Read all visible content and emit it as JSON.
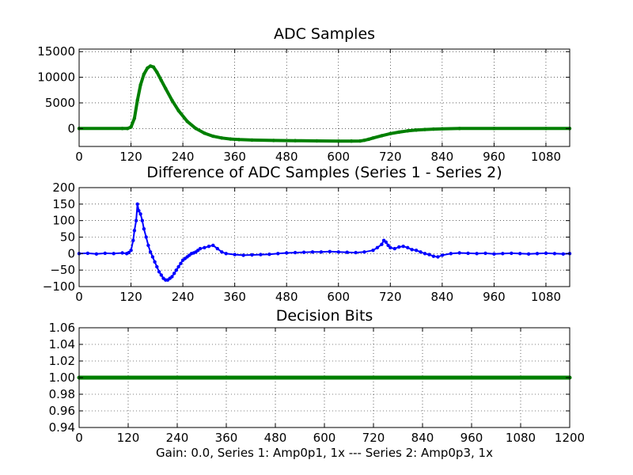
{
  "chart_data": [
    {
      "type": "line",
      "title": "ADC Samples",
      "xlim": [
        0,
        1135
      ],
      "ylim": [
        -3500,
        15500
      ],
      "xticks": [
        0,
        120,
        240,
        360,
        480,
        600,
        720,
        840,
        960,
        1080
      ],
      "yticks": [
        0,
        5000,
        10000,
        15000
      ],
      "grid": true,
      "series": [
        {
          "color": "#007f00",
          "marker": "dot",
          "x": [
            0,
            100,
            112,
            120,
            128,
            135,
            142,
            150,
            158,
            165,
            172,
            180,
            190,
            200,
            215,
            230,
            250,
            270,
            290,
            310,
            330,
            350,
            370,
            400,
            450,
            500,
            550,
            600,
            630,
            650,
            660,
            670,
            680,
            700,
            720,
            740,
            760,
            780,
            800,
            820,
            840,
            880,
            960,
            1080,
            1135
          ],
          "y": [
            0,
            0,
            0,
            300,
            2000,
            5500,
            8500,
            10600,
            11800,
            12200,
            12000,
            11000,
            9400,
            7800,
            5500,
            3500,
            1400,
            0,
            -900,
            -1500,
            -1850,
            -2050,
            -2150,
            -2250,
            -2320,
            -2380,
            -2420,
            -2450,
            -2450,
            -2430,
            -2300,
            -2100,
            -1850,
            -1400,
            -1000,
            -700,
            -450,
            -300,
            -200,
            -120,
            -60,
            0,
            0,
            0,
            0
          ]
        }
      ]
    },
    {
      "type": "line",
      "title": "Difference of ADC Samples (Series 1 - Series 2)",
      "xlim": [
        0,
        1135
      ],
      "ylim": [
        -100,
        200
      ],
      "xticks": [
        0,
        120,
        240,
        360,
        480,
        600,
        720,
        840,
        960,
        1080
      ],
      "yticks": [
        -100,
        -50,
        0,
        50,
        100,
        150,
        200
      ],
      "grid": true,
      "series": [
        {
          "color": "#0000ff",
          "marker": "dot",
          "x": [
            0,
            20,
            40,
            60,
            80,
            100,
            110,
            115,
            120,
            125,
            128,
            132,
            135,
            138,
            142,
            146,
            150,
            155,
            160,
            165,
            170,
            175,
            180,
            185,
            190,
            195,
            200,
            205,
            210,
            215,
            220,
            225,
            230,
            235,
            240,
            245,
            250,
            255,
            260,
            265,
            270,
            275,
            280,
            290,
            300,
            310,
            320,
            330,
            340,
            360,
            380,
            400,
            420,
            440,
            460,
            480,
            500,
            520,
            540,
            560,
            580,
            600,
            620,
            640,
            660,
            680,
            690,
            700,
            705,
            710,
            715,
            720,
            730,
            740,
            750,
            760,
            770,
            780,
            790,
            800,
            810,
            820,
            830,
            840,
            860,
            880,
            900,
            920,
            940,
            960,
            980,
            1000,
            1020,
            1040,
            1060,
            1080,
            1100,
            1120,
            1135
          ],
          "y": [
            0,
            1,
            -1,
            1,
            0,
            2,
            0,
            3,
            10,
            40,
            70,
            100,
            150,
            130,
            120,
            100,
            75,
            50,
            25,
            5,
            -10,
            -25,
            -40,
            -55,
            -65,
            -75,
            -80,
            -80,
            -75,
            -70,
            -60,
            -50,
            -40,
            -30,
            -20,
            -15,
            -10,
            -5,
            0,
            2,
            5,
            10,
            15,
            18,
            22,
            25,
            15,
            5,
            0,
            -3,
            -5,
            -4,
            -3,
            -2,
            0,
            2,
            3,
            4,
            5,
            5,
            6,
            5,
            4,
            3,
            5,
            10,
            18,
            28,
            40,
            35,
            25,
            18,
            15,
            20,
            22,
            18,
            12,
            10,
            5,
            0,
            -3,
            -8,
            -10,
            -5,
            0,
            2,
            1,
            0,
            1,
            -1,
            0,
            1,
            0,
            -1,
            0,
            1,
            0,
            -1,
            0
          ]
        }
      ]
    },
    {
      "type": "line",
      "title": "Decision Bits",
      "xlabel": "Gain: 0.0, Series 1: Amp0p1, 1x --- Series 2: Amp0p3, 1x",
      "xlim": [
        0,
        1200
      ],
      "ylim": [
        0.94,
        1.06
      ],
      "xticks": [
        0,
        120,
        240,
        360,
        480,
        600,
        720,
        840,
        960,
        1080,
        1200
      ],
      "yticks": [
        0.94,
        0.96,
        0.98,
        1.0,
        1.02,
        1.04,
        1.06
      ],
      "ytick_labels": [
        "0.94",
        "0.96",
        "0.98",
        "1.00",
        "1.02",
        "1.04",
        "1.06"
      ],
      "grid": true,
      "series": [
        {
          "color": "#007f00",
          "marker": "dot",
          "x": [
            0,
            1200
          ],
          "y": [
            1,
            1
          ]
        }
      ]
    }
  ]
}
